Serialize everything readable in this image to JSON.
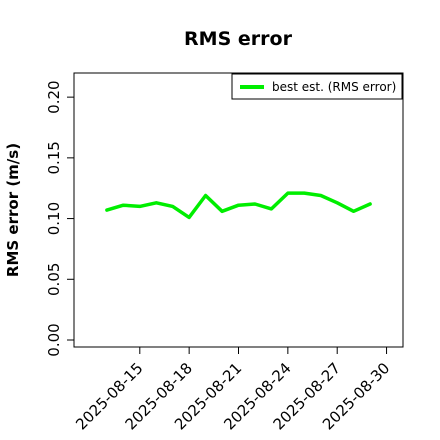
{
  "chart_data": {
    "type": "line",
    "title": "RMS error",
    "xlabel": "",
    "ylabel": "RMS error (m/s)",
    "ylim": [
      0,
      0.21
    ],
    "yticks": [
      "0.00",
      "0.05",
      "0.10",
      "0.15",
      "0.20"
    ],
    "ytick_values": [
      0,
      0.05,
      0.1,
      0.15,
      0.2
    ],
    "xlim": [
      "2025-08-11",
      "2025-08-31"
    ],
    "xticks": [
      {
        "label": "2025-08-15",
        "date": "2025-08-15",
        "color": "#000000"
      },
      {
        "label": "2025-08-18",
        "date": "2025-08-18",
        "color": "#000000"
      },
      {
        "label": "2025-08-21",
        "date": "2025-08-21",
        "color": "#228B22"
      },
      {
        "label": "2025-08-24",
        "date": "2025-08-24",
        "color": "#000000"
      },
      {
        "label": "2025-08-27",
        "date": "2025-08-27",
        "color": "#000000"
      },
      {
        "label": "2025-08-30",
        "date": "2025-08-30",
        "color": "#000000"
      }
    ],
    "legend_position": "top-right",
    "grid": false,
    "series": [
      {
        "name": "best est. (RMS error)",
        "color": "#00ee00",
        "x": [
          "2025-08-13",
          "2025-08-14",
          "2025-08-15",
          "2025-08-16",
          "2025-08-17",
          "2025-08-18",
          "2025-08-19",
          "2025-08-20",
          "2025-08-21",
          "2025-08-22",
          "2025-08-23",
          "2025-08-24",
          "2025-08-25",
          "2025-08-26",
          "2025-08-27",
          "2025-08-28",
          "2025-08-29",
          "2025-08-30"
        ],
        "values": [
          0.107,
          0.111,
          0.11,
          0.113,
          0.11,
          0.101,
          0.119,
          0.106,
          0.111,
          0.112,
          0.108,
          0.121,
          0.121,
          0.119,
          0.113,
          0.106,
          0.112,
          null
        ]
      }
    ]
  }
}
